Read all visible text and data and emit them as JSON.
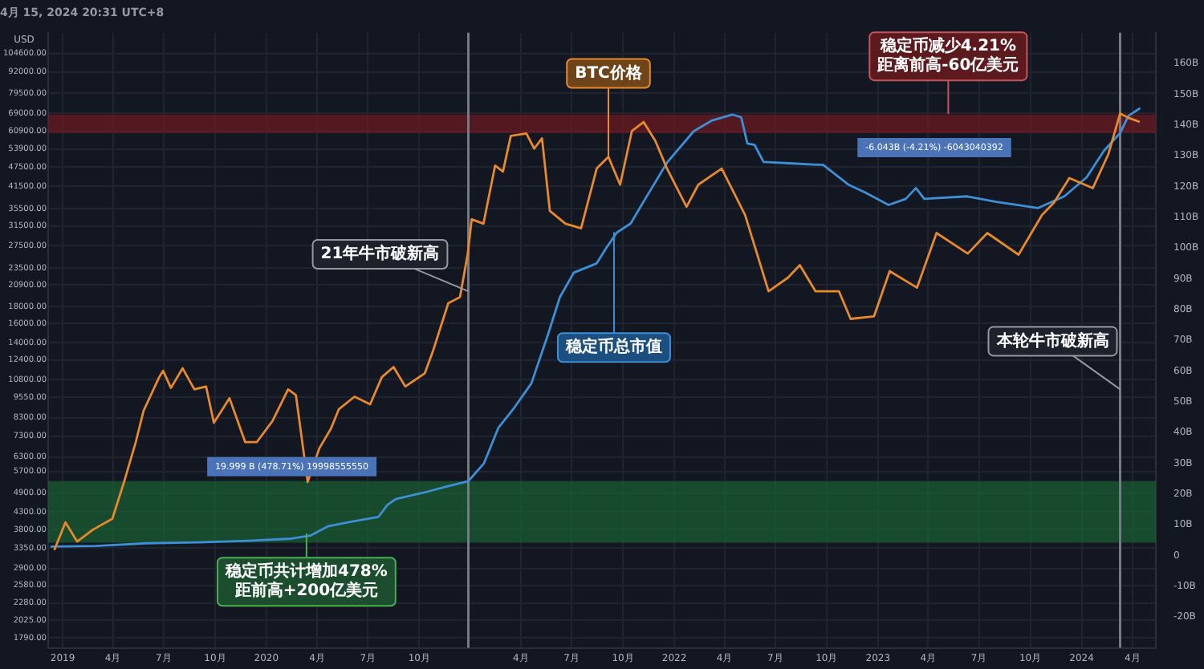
{
  "chart_data": {
    "type": "line",
    "title": "4月 15, 2024 20:31 UTC+8",
    "ylabel": "USD",
    "xlim": [
      "2018-12-06",
      "2024-05-13"
    ],
    "xticks": [
      {
        "value": "2019-01",
        "label": "2019"
      },
      {
        "value": "2019-04",
        "label": "4月"
      },
      {
        "value": "2019-07",
        "label": "7月"
      },
      {
        "value": "2019-10",
        "label": "10月"
      },
      {
        "value": "2020-01",
        "label": "2020"
      },
      {
        "value": "2020-04",
        "label": "4月"
      },
      {
        "value": "2020-07",
        "label": "7月"
      },
      {
        "value": "2020-10",
        "label": "10月"
      },
      {
        "value": "2021-04",
        "label": "4月"
      },
      {
        "value": "2021-07",
        "label": "7月"
      },
      {
        "value": "2021-10",
        "label": "10月"
      },
      {
        "value": "2022-01",
        "label": "2022"
      },
      {
        "value": "2022-04",
        "label": "4月"
      },
      {
        "value": "2022-07",
        "label": "7月"
      },
      {
        "value": "2022-10",
        "label": "10月"
      },
      {
        "value": "2023-01",
        "label": "2023"
      },
      {
        "value": "2023-04",
        "label": "4月"
      },
      {
        "value": "2023-07",
        "label": "7月"
      },
      {
        "value": "2023-10",
        "label": "10月"
      },
      {
        "value": "2024-01",
        "label": "2024"
      },
      {
        "value": "2024-04",
        "label": "4月"
      }
    ],
    "log": "y",
    "ylim": [
      1670,
      121000
    ],
    "yticks": [
      {
        "value": 1790,
        "label": "1790.00"
      },
      {
        "value": 2025,
        "label": "2025.00"
      },
      {
        "value": 2280,
        "label": "2280.00"
      },
      {
        "value": 2580,
        "label": "2580.00"
      },
      {
        "value": 2900,
        "label": "2900.00"
      },
      {
        "value": 3350,
        "label": "3350.00"
      },
      {
        "value": 3800,
        "label": "3800.00"
      },
      {
        "value": 4300,
        "label": "4300.00"
      },
      {
        "value": 4900,
        "label": "4900.00"
      },
      {
        "value": 5700,
        "label": "5700.00"
      },
      {
        "value": 6300,
        "label": "6300.00"
      },
      {
        "value": 7300,
        "label": "7300.00"
      },
      {
        "value": 8300,
        "label": "8300.00"
      },
      {
        "value": 9550,
        "label": "9550.00"
      },
      {
        "value": 10800,
        "label": "10800.00"
      },
      {
        "value": 12400,
        "label": "12400.00"
      },
      {
        "value": 14000,
        "label": "14000.00"
      },
      {
        "value": 16000,
        "label": "16000.00"
      },
      {
        "value": 18000,
        "label": "18000.00"
      },
      {
        "value": 20900,
        "label": "20900.00"
      },
      {
        "value": 23500,
        "label": "23500.00"
      },
      {
        "value": 27500,
        "label": "27500.00"
      },
      {
        "value": 31500,
        "label": "31500.00"
      },
      {
        "value": 35500,
        "label": "35500.00"
      },
      {
        "value": 41500,
        "label": "41500.00"
      },
      {
        "value": 47500,
        "label": "47500.00"
      },
      {
        "value": 53900,
        "label": "53900.00"
      },
      {
        "value": 60900,
        "label": "60900.00"
      },
      {
        "value": 69000,
        "label": "69000.00"
      },
      {
        "value": 79500,
        "label": "79500.00"
      },
      {
        "value": 92000,
        "label": "92000.00"
      },
      {
        "value": 104600,
        "label": "104600.00"
      }
    ],
    "y2lim": [
      -30,
      170
    ],
    "y2ticks": [
      {
        "value": -20,
        "label": "-20B"
      },
      {
        "value": -10,
        "label": "-10B"
      },
      0,
      {
        "value": 10,
        "label": "10B"
      },
      {
        "value": 20,
        "label": "20B"
      },
      {
        "value": 30,
        "label": "30B"
      },
      {
        "value": 40,
        "label": "40B"
      },
      {
        "value": 50,
        "label": "50B"
      },
      {
        "value": 60,
        "label": "60B"
      },
      {
        "value": 70,
        "label": "70B"
      },
      {
        "value": 80,
        "label": "80B"
      },
      {
        "value": 90,
        "label": "90B"
      },
      {
        "value": 100,
        "label": "100B"
      },
      {
        "value": 110,
        "label": "110B"
      },
      {
        "value": 120,
        "label": "120B"
      },
      {
        "value": 130,
        "label": "130B"
      },
      {
        "value": 140,
        "label": "140B"
      },
      {
        "value": 150,
        "label": "150B"
      },
      {
        "value": 160,
        "label": "160B"
      }
    ],
    "grid": true,
    "series": [
      {
        "color": "#e8892c",
        "x": [
          "2018-12-17",
          "2019-01-06",
          "2019-01-27",
          "2019-02-24",
          "2019-03-31",
          "2019-04-21",
          "2019-05-12",
          "2019-05-26",
          "2019-06-23",
          "2019-06-30",
          "2019-07-14",
          "2019-08-04",
          "2019-08-25",
          "2019-09-15",
          "2019-09-29",
          "2019-10-27",
          "2019-11-24",
          "2019-12-15",
          "2020-01-12",
          "2020-02-09",
          "2020-02-23",
          "2020-03-15",
          "2020-04-05",
          "2020-04-26",
          "2020-05-10",
          "2020-06-07",
          "2020-07-05",
          "2020-07-26",
          "2020-08-16",
          "2020-09-06",
          "2020-10-11",
          "2020-10-25",
          "2020-11-22",
          "2020-12-13",
          "2020-12-27",
          "2021-01-03",
          "2021-01-24",
          "2021-02-14",
          "2021-02-28",
          "2021-03-14",
          "2021-04-11",
          "2021-04-25",
          "2021-05-09",
          "2021-05-23",
          "2021-06-20",
          "2021-07-18",
          "2021-08-15",
          "2021-09-05",
          "2021-09-26",
          "2021-10-17",
          "2021-11-07",
          "2021-11-28",
          "2021-12-19",
          "2022-01-23",
          "2022-02-13",
          "2022-03-27",
          "2022-05-08",
          "2022-06-19",
          "2022-07-24",
          "2022-08-14",
          "2022-09-11",
          "2022-10-23",
          "2022-11-13",
          "2022-12-25",
          "2023-01-22",
          "2023-03-12",
          "2023-04-16",
          "2023-06-11",
          "2023-07-16",
          "2023-09-10",
          "2023-10-22",
          "2023-11-12",
          "2023-12-10",
          "2024-01-21",
          "2024-02-18",
          "2024-03-10",
          "2024-03-24",
          "2024-04-14"
        ],
        "values": [
          3300,
          4000,
          3500,
          3800,
          4100,
          5300,
          7000,
          8700,
          11000,
          11500,
          10200,
          11700,
          10100,
          10300,
          8000,
          9500,
          7000,
          7000,
          8100,
          10100,
          9700,
          5300,
          6700,
          7700,
          8800,
          9600,
          9100,
          11000,
          11800,
          10300,
          11300,
          13100,
          18400,
          19200,
          26000,
          33000,
          32000,
          48000,
          46000,
          59000,
          60000,
          54000,
          58000,
          35000,
          32000,
          31000,
          47000,
          51000,
          42000,
          61000,
          65000,
          57000,
          47000,
          36000,
          42000,
          47000,
          34000,
          20000,
          22000,
          24000,
          20000,
          20000,
          16500,
          16800,
          23000,
          20500,
          30000,
          26000,
          30000,
          25800,
          34000,
          37000,
          44000,
          41000,
          52000,
          69000,
          67000,
          65000
        ]
      },
      {
        "color": "#3d8fd6",
        "axis": "y2",
        "x": [
          "2018-12-10",
          "2019-03-01",
          "2019-06-01",
          "2019-09-01",
          "2019-12-01",
          "2020-02-15",
          "2020-03-20",
          "2020-04-20",
          "2020-06-01",
          "2020-07-20",
          "2020-08-05",
          "2020-08-20",
          "2020-10-10",
          "2020-11-20",
          "2020-12-28",
          "2021-01-25",
          "2021-02-20",
          "2021-03-20",
          "2021-04-20",
          "2021-05-20",
          "2021-06-10",
          "2021-07-05",
          "2021-08-15",
          "2021-09-01",
          "2021-09-20",
          "2021-10-15",
          "2021-11-10",
          "2021-12-20",
          "2022-02-05",
          "2022-03-10",
          "2022-04-15",
          "2022-05-01",
          "2022-05-12",
          "2022-05-25",
          "2022-06-10",
          "2022-08-01",
          "2022-09-25",
          "2022-11-10",
          "2022-12-10",
          "2023-01-20",
          "2023-02-20",
          "2023-03-10",
          "2023-03-25",
          "2023-06-10",
          "2023-08-01",
          "2023-10-15",
          "2023-12-01",
          "2024-01-10",
          "2024-02-10",
          "2024-03-10",
          "2024-03-25",
          "2024-04-15"
        ],
        "values": [
          2.9,
          3.1,
          4.0,
          4.3,
          4.8,
          5.5,
          6.5,
          9.5,
          11,
          12.6,
          16.5,
          18.4,
          20.5,
          22.5,
          24.2,
          30,
          41.6,
          48,
          56,
          72,
          84,
          92,
          95,
          100,
          105,
          108,
          116,
          128,
          138,
          141.5,
          143.4,
          142.5,
          134,
          133.5,
          128,
          127.5,
          127,
          120.5,
          118,
          114,
          116,
          119.5,
          116,
          116.8,
          115,
          113,
          116.8,
          123,
          131.6,
          137.4,
          143,
          145.5
        ]
      }
    ],
    "ref_lines": [
      {
        "axis": "x",
        "value": "2020-12-28",
        "color": "#787b86"
      },
      {
        "axis": "x",
        "value": "2024-03-10",
        "color": "#787b86"
      }
    ],
    "bands": [
      {
        "axis": "y2",
        "from": 4.18,
        "to": 24.18,
        "label": "19.999 B (478.71%) 19998555550",
        "color": "#1b5e33"
      },
      {
        "axis": "y2",
        "from": 137.36,
        "to": 143.4,
        "label": "-6.043B (-4.21%) -6043040392",
        "color": "#6b1a22"
      }
    ],
    "annotations": [
      {
        "text": "BTC价格",
        "x": "2021-09-05",
        "y": 51000
      },
      {
        "text": "21年牛市破新高",
        "x": "2020-12-28",
        "y": 20000
      },
      {
        "text": "稳定币总市值",
        "x": "2021-09-15",
        "y": 30200
      },
      {
        "text": "本轮牛市破新高",
        "x": "2024-03-10",
        "y": 10100
      },
      {
        "text": "稳定币减少4.21%\n距离前高-60亿美元",
        "x": "2023-05-07",
        "y": 68700
      },
      {
        "text": "稳定币共计增加478%\n距前高+200亿美元",
        "x": "2020-03-13",
        "y": 3700
      }
    ]
  }
}
